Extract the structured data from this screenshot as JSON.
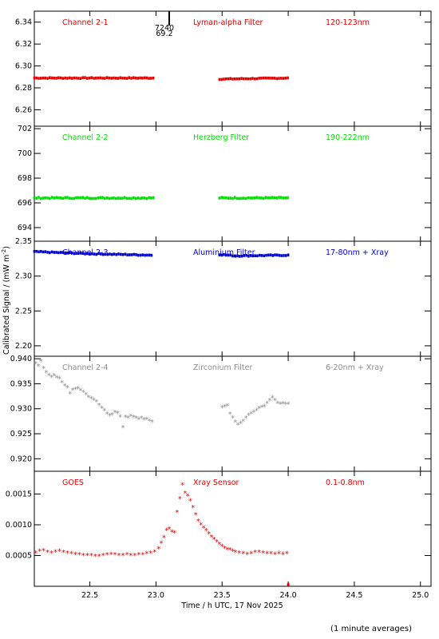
{
  "footer_note": "(1 minute averages)",
  "x_axis": {
    "label": "Time / h UTC, 17 Nov 2025",
    "range": [
      22.08,
      25.08
    ],
    "ticks": [
      22.5,
      23.0,
      23.5,
      24.0,
      24.5,
      25.0
    ],
    "tick_labels": [
      "22.5",
      "23.0",
      "23.5",
      "24.0",
      "24.5",
      "25.0"
    ]
  },
  "y_axis_label": "Calibrated Signal / (mW m",
  "y_axis_label_sup": "-2",
  "y_axis_label_end": ")",
  "top_marker": {
    "x": 23.1,
    "label_1": "7240",
    "label_2": "69.2"
  },
  "chart_data": [
    {
      "type": "scatter",
      "name": "Channel 2-1",
      "filter": "Lyman-alpha Filter",
      "band": "120-123nm",
      "color": "#e00000",
      "ylim": [
        6.245,
        6.35
      ],
      "yticks": [
        6.26,
        6.28,
        6.3,
        6.32,
        6.34
      ],
      "ytick_labels": [
        "6.26",
        "6.28",
        "6.30",
        "6.32",
        "6.34"
      ],
      "segments": [
        {
          "x": [
            22.08,
            22.98
          ],
          "y": [
            6.289,
            6.289
          ],
          "noise": 0.0004
        },
        {
          "x": [
            23.48,
            24.0
          ],
          "y": [
            6.288,
            6.289
          ],
          "noise": 0.0004
        }
      ]
    },
    {
      "type": "scatter",
      "name": "Channel 2-2",
      "filter": "Herzberg Filter",
      "band": "190-222nm",
      "color": "#00dd00",
      "ylim": [
        692.9,
        702.2
      ],
      "yticks": [
        694,
        696,
        698,
        700,
        702
      ],
      "ytick_labels": [
        "694",
        "696",
        "698",
        "700",
        "702"
      ],
      "segments": [
        {
          "x": [
            22.08,
            22.98
          ],
          "y": [
            696.4,
            696.4
          ],
          "noise": 0.05
        },
        {
          "x": [
            23.48,
            24.0
          ],
          "y": [
            696.4,
            696.4
          ],
          "noise": 0.05
        }
      ]
    },
    {
      "type": "scatter",
      "name": "Channel 2-3",
      "filter": "Aluminium Filter",
      "band": "17-80nm + Xray",
      "color": "#0000cc",
      "ylim": [
        2.185,
        2.35
      ],
      "yticks": [
        2.2,
        2.25,
        2.3,
        2.35
      ],
      "ytick_labels": [
        "2.20",
        "2.25",
        "2.30",
        "2.35"
      ],
      "segments": [
        {
          "x": [
            22.08,
            22.5,
            22.98
          ],
          "y": [
            2.335,
            2.332,
            2.33
          ],
          "noise": 0.0007
        },
        {
          "x": [
            23.48,
            23.6,
            24.0
          ],
          "y": [
            2.331,
            2.329,
            2.33
          ],
          "noise": 0.0007
        }
      ]
    },
    {
      "type": "scatter",
      "name": "Channel 2-4",
      "filter": "Zirconium Filter",
      "band": "6-20nm + Xray",
      "color": "#8c8c8c",
      "ylim": [
        0.9175,
        0.9405
      ],
      "yticks": [
        0.92,
        0.925,
        0.93,
        0.935,
        0.94
      ],
      "ytick_labels": [
        "0.920",
        "0.925",
        "0.930",
        "0.935",
        "0.940"
      ],
      "points": [
        [
          22.09,
          0.939
        ],
        [
          22.11,
          0.9385
        ],
        [
          22.13,
          0.9395
        ],
        [
          22.15,
          0.938
        ],
        [
          22.17,
          0.9372
        ],
        [
          22.19,
          0.9367
        ],
        [
          22.21,
          0.9363
        ],
        [
          22.23,
          0.9366
        ],
        [
          22.25,
          0.9362
        ],
        [
          22.27,
          0.936
        ],
        [
          22.29,
          0.9352
        ],
        [
          22.31,
          0.9346
        ],
        [
          22.33,
          0.9342
        ],
        [
          22.35,
          0.933
        ],
        [
          22.37,
          0.9337
        ],
        [
          22.39,
          0.9339
        ],
        [
          22.41,
          0.934
        ],
        [
          22.43,
          0.9336
        ],
        [
          22.45,
          0.9333
        ],
        [
          22.47,
          0.9328
        ],
        [
          22.49,
          0.9323
        ],
        [
          22.51,
          0.932
        ],
        [
          22.53,
          0.9317
        ],
        [
          22.55,
          0.9314
        ],
        [
          22.57,
          0.9307
        ],
        [
          22.59,
          0.9301
        ],
        [
          22.61,
          0.9296
        ],
        [
          22.63,
          0.9289
        ],
        [
          22.65,
          0.9286
        ],
        [
          22.67,
          0.9288
        ],
        [
          22.69,
          0.9292
        ],
        [
          22.71,
          0.9291
        ],
        [
          22.73,
          0.9284
        ],
        [
          22.75,
          0.9262
        ],
        [
          22.77,
          0.9283
        ],
        [
          22.79,
          0.9281
        ],
        [
          22.81,
          0.9285
        ],
        [
          22.83,
          0.9283
        ],
        [
          22.85,
          0.9281
        ],
        [
          22.87,
          0.9279
        ],
        [
          22.89,
          0.9281
        ],
        [
          22.91,
          0.9278
        ],
        [
          22.93,
          0.9279
        ],
        [
          22.95,
          0.9276
        ],
        [
          22.97,
          0.9273
        ],
        [
          23.5,
          0.9302
        ],
        [
          23.52,
          0.9304
        ],
        [
          23.54,
          0.9306
        ],
        [
          23.56,
          0.9289
        ],
        [
          23.58,
          0.9282
        ],
        [
          23.6,
          0.9273
        ],
        [
          23.62,
          0.9268
        ],
        [
          23.64,
          0.9271
        ],
        [
          23.66,
          0.9275
        ],
        [
          23.68,
          0.9281
        ],
        [
          23.7,
          0.9287
        ],
        [
          23.72,
          0.929
        ],
        [
          23.74,
          0.9293
        ],
        [
          23.76,
          0.9296
        ],
        [
          23.78,
          0.93
        ],
        [
          23.8,
          0.9303
        ],
        [
          23.82,
          0.9304
        ],
        [
          23.84,
          0.9311
        ],
        [
          23.86,
          0.9316
        ],
        [
          23.88,
          0.9322
        ],
        [
          23.9,
          0.9316
        ],
        [
          23.92,
          0.9311
        ],
        [
          23.94,
          0.9309
        ],
        [
          23.96,
          0.931
        ],
        [
          23.98,
          0.9309
        ],
        [
          24.0,
          0.9309
        ]
      ]
    },
    {
      "type": "scatter",
      "name": "GOES",
      "filter": "Xray Sensor",
      "band": "0.1-0.8nm",
      "color": "#e00000",
      "ylim": [
        0.0,
        0.00187
      ],
      "yticks": [
        0.0005,
        0.001,
        0.0015
      ],
      "ytick_labels": [
        "0.0005",
        "0.0010",
        "0.0015"
      ],
      "points": [
        [
          22.09,
          0.00054
        ],
        [
          22.12,
          0.00057
        ],
        [
          22.15,
          0.00058
        ],
        [
          22.18,
          0.00055
        ],
        [
          22.21,
          0.00054
        ],
        [
          22.24,
          0.00056
        ],
        [
          22.27,
          0.00057
        ],
        [
          22.3,
          0.00055
        ],
        [
          22.33,
          0.00054
        ],
        [
          22.36,
          0.00053
        ],
        [
          22.39,
          0.00052
        ],
        [
          22.42,
          0.00051
        ],
        [
          22.45,
          0.0005
        ],
        [
          22.48,
          0.0005
        ],
        [
          22.51,
          0.0005
        ],
        [
          22.54,
          0.00049
        ],
        [
          22.57,
          0.00049
        ],
        [
          22.6,
          0.0005
        ],
        [
          22.63,
          0.00051
        ],
        [
          22.66,
          0.00052
        ],
        [
          22.69,
          0.00051
        ],
        [
          22.72,
          0.0005
        ],
        [
          22.75,
          0.0005
        ],
        [
          22.78,
          0.00051
        ],
        [
          22.81,
          0.0005
        ],
        [
          22.84,
          0.0005
        ],
        [
          22.87,
          0.00051
        ],
        [
          22.9,
          0.00051
        ],
        [
          22.93,
          0.00053
        ],
        [
          22.96,
          0.00054
        ],
        [
          22.99,
          0.00056
        ],
        [
          23.02,
          0.00061
        ],
        [
          23.04,
          0.0007
        ],
        [
          23.06,
          0.00079
        ],
        [
          23.08,
          0.00091
        ],
        [
          23.1,
          0.00093
        ],
        [
          23.12,
          0.00088
        ],
        [
          23.14,
          0.00087
        ],
        [
          23.16,
          0.0012
        ],
        [
          23.18,
          0.00142
        ],
        [
          23.2,
          0.00165
        ],
        [
          23.22,
          0.00151
        ],
        [
          23.24,
          0.00147
        ],
        [
          23.26,
          0.00139
        ],
        [
          23.28,
          0.00128
        ],
        [
          23.3,
          0.00116
        ],
        [
          23.32,
          0.00106
        ],
        [
          23.34,
          0.001
        ],
        [
          23.36,
          0.00095
        ],
        [
          23.38,
          0.0009
        ],
        [
          23.4,
          0.00085
        ],
        [
          23.42,
          0.0008
        ],
        [
          23.44,
          0.00076
        ],
        [
          23.46,
          0.00072
        ],
        [
          23.48,
          0.00068
        ],
        [
          23.5,
          0.00065
        ],
        [
          23.52,
          0.00062
        ],
        [
          23.54,
          0.0006
        ],
        [
          23.56,
          0.00059
        ],
        [
          23.58,
          0.00057
        ],
        [
          23.6,
          0.00055
        ],
        [
          23.63,
          0.00054
        ],
        [
          23.66,
          0.00053
        ],
        [
          23.69,
          0.00052
        ],
        [
          23.72,
          0.00053
        ],
        [
          23.75,
          0.00055
        ],
        [
          23.78,
          0.00055
        ],
        [
          23.81,
          0.00054
        ],
        [
          23.84,
          0.00053
        ],
        [
          23.87,
          0.00053
        ],
        [
          23.9,
          0.00052
        ],
        [
          23.93,
          0.00053
        ],
        [
          23.96,
          0.00052
        ],
        [
          23.99,
          0.00053
        ]
      ],
      "extra_marker": [
        24.0,
        3e-05
      ]
    }
  ]
}
